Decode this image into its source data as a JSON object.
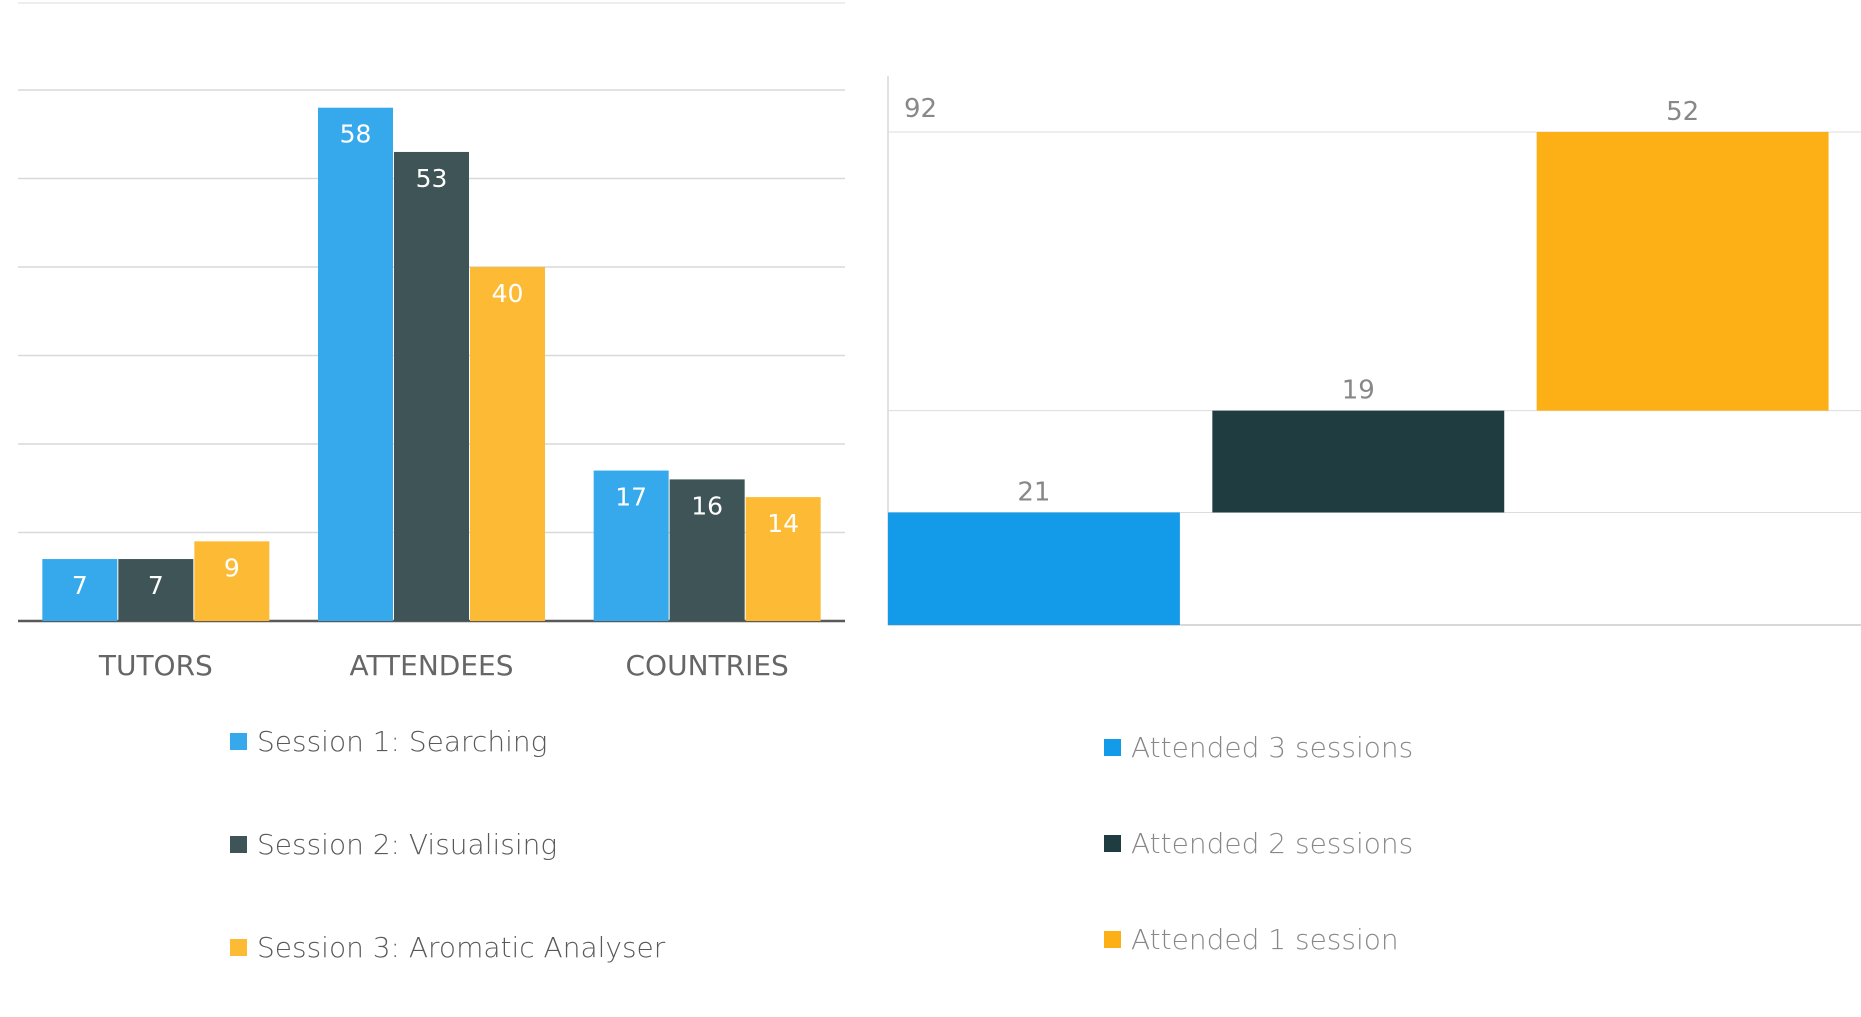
{
  "chart_data": [
    {
      "type": "bar",
      "categories": [
        "TUTORS",
        "ATTENDEES",
        "COUNTRIES"
      ],
      "series": [
        {
          "name": "Session 1: Searching",
          "values": [
            7,
            58,
            17
          ],
          "color": "#35a9ec"
        },
        {
          "name": "Session 2: Visualising",
          "values": [
            7,
            53,
            16
          ],
          "color": "#3e5456"
        },
        {
          "name": "Session 3: Aromatic Analyser",
          "values": [
            9,
            40,
            14
          ],
          "color": "#fdbb35"
        }
      ],
      "ylim": [
        0,
        60
      ],
      "grid": true,
      "legend_position": "bottom"
    },
    {
      "type": "bar",
      "subtype": "waterfall",
      "categories": [
        "Attended 3 sessions",
        "Attended 2 sessions",
        "Attended 1 session"
      ],
      "values": [
        21,
        19,
        52
      ],
      "total": 92,
      "colors": [
        "#139ae9",
        "#1f3c40",
        "#fdb015"
      ],
      "ylim": [
        0,
        92
      ],
      "grid": true,
      "legend_position": "bottom"
    }
  ]
}
